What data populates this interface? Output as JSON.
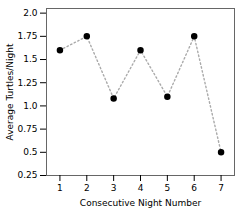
{
  "chart_data": {
    "type": "line",
    "xlabel": "Consecutive Night Number",
    "ylabel": "Average Turtles/Night",
    "x": [
      1,
      2,
      3,
      4,
      5,
      6,
      7
    ],
    "values": [
      1.6,
      1.75,
      1.08,
      1.6,
      1.1,
      1.75,
      0.5
    ],
    "xlim": [
      0.5,
      7.5
    ],
    "ylim": [
      0.25,
      2.05
    ],
    "xticks": [
      1,
      2,
      3,
      4,
      5,
      6,
      7
    ],
    "yticks": [
      0.25,
      0.5,
      0.75,
      {
        "value": 1,
        "label": "1.0"
      },
      1.25,
      1.5,
      1.75,
      {
        "value": 2,
        "label": "2.0"
      }
    ],
    "color": "#aaaaaa",
    "marker": "circle",
    "line_style": "dotted",
    "grid": false
  }
}
